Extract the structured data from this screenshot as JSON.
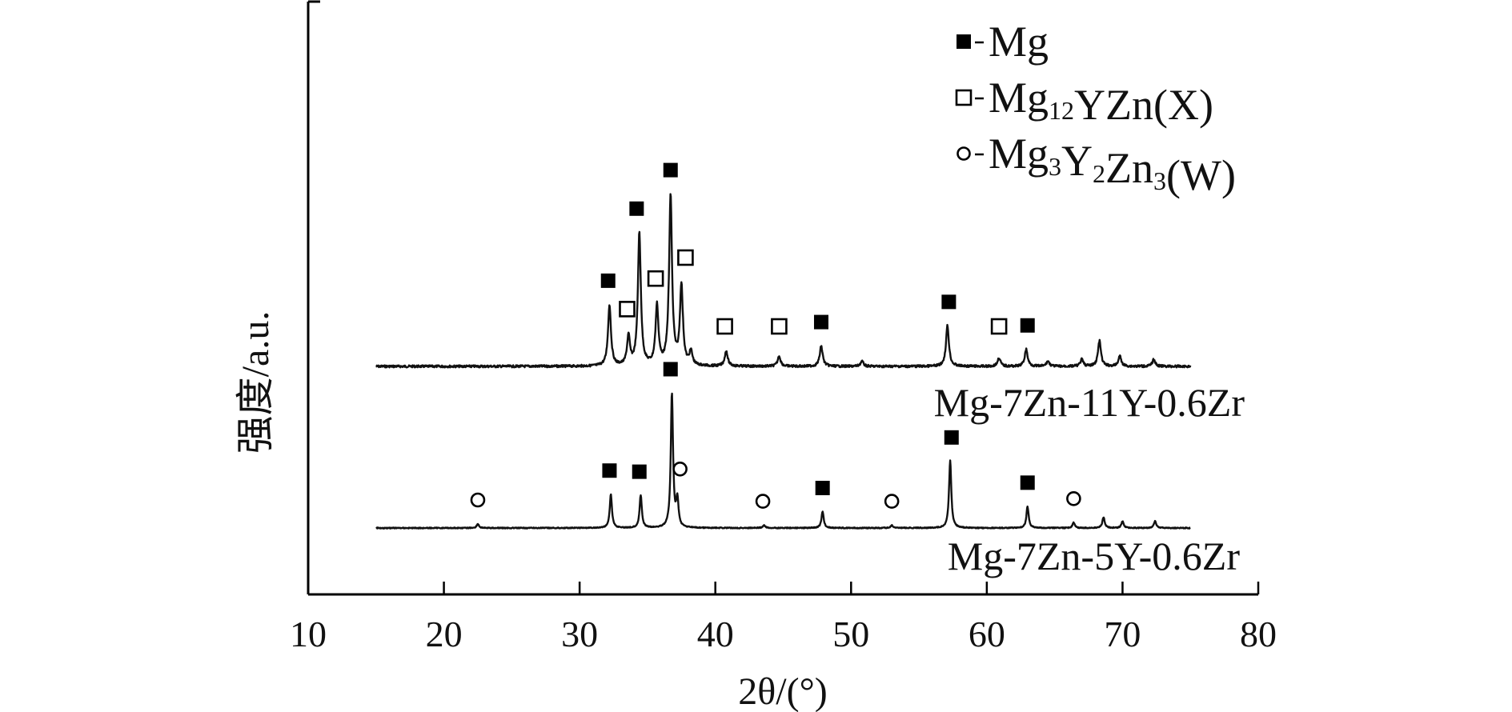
{
  "chart_data": {
    "type": "line",
    "xlabel": "2θ/(°)",
    "ylabel": "强度/a.u.",
    "xlim": [
      10,
      80
    ],
    "x_ticks": [
      10,
      20,
      30,
      40,
      50,
      60,
      70,
      80
    ],
    "x_range_measured": [
      15,
      75
    ],
    "legend": {
      "position": "top-right",
      "entries": [
        {
          "symbol": "filled-square",
          "symbol_glyph": "■",
          "text": "Mg",
          "parts": [
            {
              "t": "Mg"
            }
          ]
        },
        {
          "symbol": "open-square",
          "symbol_glyph": "□",
          "text": "Mg12YZn(X)",
          "parts": [
            {
              "t": "Mg"
            },
            {
              "t": "12",
              "sub": true
            },
            {
              "t": "YZn(X)"
            }
          ]
        },
        {
          "symbol": "open-circle",
          "symbol_glyph": "○",
          "text": "Mg3Y2Zn3(W)",
          "parts": [
            {
              "t": "Mg"
            },
            {
              "t": "3",
              "sub": true
            },
            {
              "t": "Y"
            },
            {
              "t": "2",
              "sub": true
            },
            {
              "t": "Zn"
            },
            {
              "t": "3",
              "sub": true
            },
            {
              "t": "(W)"
            }
          ]
        }
      ]
    },
    "series": [
      {
        "name": "Mg-7Zn-11Y-0.6Zr",
        "peaks": [
          {
            "x": 32.2,
            "height": 0.36
          },
          {
            "x": 33.6,
            "height": 0.17
          },
          {
            "x": 34.4,
            "height": 0.78
          },
          {
            "x": 35.7,
            "height": 0.35
          },
          {
            "x": 36.7,
            "height": 1.0
          },
          {
            "x": 37.5,
            "height": 0.47
          },
          {
            "x": 38.2,
            "height": 0.08
          },
          {
            "x": 40.8,
            "height": 0.09
          },
          {
            "x": 44.7,
            "height": 0.06
          },
          {
            "x": 47.8,
            "height": 0.12
          },
          {
            "x": 50.8,
            "height": 0.03
          },
          {
            "x": 57.1,
            "height": 0.24
          },
          {
            "x": 60.9,
            "height": 0.05
          },
          {
            "x": 62.9,
            "height": 0.1
          },
          {
            "x": 64.5,
            "height": 0.03
          },
          {
            "x": 67.0,
            "height": 0.04
          },
          {
            "x": 68.3,
            "height": 0.15
          },
          {
            "x": 69.8,
            "height": 0.06
          },
          {
            "x": 72.3,
            "height": 0.04
          }
        ],
        "markers": [
          {
            "phase": "Mg",
            "x": 32.1
          },
          {
            "phase": "Mg12YZn(X)",
            "x": 33.5
          },
          {
            "phase": "Mg",
            "x": 34.2
          },
          {
            "phase": "Mg12YZn(X)",
            "x": 35.6
          },
          {
            "phase": "Mg",
            "x": 36.7
          },
          {
            "phase": "Mg12YZn(X)",
            "x": 37.8
          },
          {
            "phase": "Mg12YZn(X)",
            "x": 40.7
          },
          {
            "phase": "Mg12YZn(X)",
            "x": 44.7
          },
          {
            "phase": "Mg",
            "x": 47.8
          },
          {
            "phase": "Mg",
            "x": 57.2
          },
          {
            "phase": "Mg12YZn(X)",
            "x": 60.9
          },
          {
            "phase": "Mg",
            "x": 63.0
          }
        ]
      },
      {
        "name": "Mg-7Zn-5Y-0.6Zr",
        "peaks": [
          {
            "x": 22.5,
            "height": 0.03
          },
          {
            "x": 32.3,
            "height": 0.25
          },
          {
            "x": 34.5,
            "height": 0.24
          },
          {
            "x": 36.8,
            "height": 1.0
          },
          {
            "x": 37.2,
            "height": 0.2
          },
          {
            "x": 43.6,
            "height": 0.02
          },
          {
            "x": 47.9,
            "height": 0.12
          },
          {
            "x": 53.0,
            "height": 0.02
          },
          {
            "x": 57.3,
            "height": 0.5
          },
          {
            "x": 63.0,
            "height": 0.16
          },
          {
            "x": 66.4,
            "height": 0.04
          },
          {
            "x": 68.6,
            "height": 0.08
          },
          {
            "x": 70.0,
            "height": 0.05
          },
          {
            "x": 72.4,
            "height": 0.05
          }
        ],
        "markers": [
          {
            "phase": "Mg3Y2Zn3(W)",
            "x": 22.5
          },
          {
            "phase": "Mg",
            "x": 32.2
          },
          {
            "phase": "Mg",
            "x": 34.4
          },
          {
            "phase": "Mg",
            "x": 36.7
          },
          {
            "phase": "Mg3Y2Zn3(W)",
            "x": 37.4
          },
          {
            "phase": "Mg3Y2Zn3(W)",
            "x": 43.5
          },
          {
            "phase": "Mg",
            "x": 47.9
          },
          {
            "phase": "Mg3Y2Zn3(W)",
            "x": 53.0
          },
          {
            "phase": "Mg",
            "x": 57.4
          },
          {
            "phase": "Mg",
            "x": 63.0
          },
          {
            "phase": "Mg3Y2Zn3(W)",
            "x": 66.4
          }
        ]
      }
    ]
  }
}
